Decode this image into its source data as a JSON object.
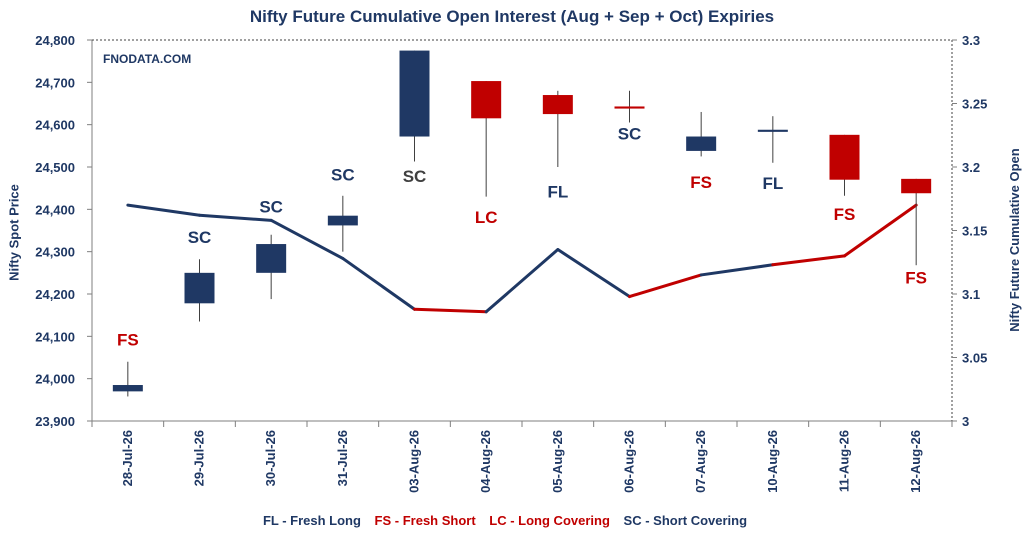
{
  "chart_data": {
    "type": "candlestick+line",
    "title": "Nifty Future Cumulative Open Interest (Aug + Sep + Oct) Expiries",
    "ylabel_left": "Nifty Spot Price",
    "ylabel_right": "Nifty Future Cumulative Open Interest",
    "ylim_left": [
      23900,
      24800
    ],
    "ylim_right": [
      3,
      3.3
    ],
    "yticks_left": [
      "23,900",
      "24,000",
      "24,100",
      "24,200",
      "24,300",
      "24,400",
      "24,500",
      "24,600",
      "24,700",
      "24,800"
    ],
    "yticks_right": [
      "3",
      "3.05",
      "3.1",
      "3.15",
      "3.2",
      "3.25",
      "3.3"
    ],
    "categories": [
      "28-Jul-26",
      "29-Jul-26",
      "30-Jul-26",
      "31-Jul-26",
      "03-Aug-26",
      "04-Aug-26",
      "05-Aug-26",
      "06-Aug-26",
      "07-Aug-26",
      "10-Aug-26",
      "11-Aug-26",
      "12-Aug-26"
    ],
    "candles": [
      {
        "open": 23985,
        "high": 24040,
        "low": 23958,
        "close": 23970,
        "color": "#1f3864"
      },
      {
        "open": 24178,
        "high": 24282,
        "low": 24135,
        "close": 24250,
        "color": "#1f3864"
      },
      {
        "open": 24250,
        "high": 24340,
        "low": 24188,
        "close": 24318,
        "color": "#1f3864"
      },
      {
        "open": 24362,
        "high": 24432,
        "low": 24300,
        "close": 24385,
        "color": "#1f3864"
      },
      {
        "open": 24572,
        "high": 24775,
        "low": 24513,
        "close": 24775,
        "color": "#1f3864"
      },
      {
        "open": 24703,
        "high": 24703,
        "low": 24430,
        "close": 24615,
        "color": "#c00000"
      },
      {
        "open": 24670,
        "high": 24680,
        "low": 24500,
        "close": 24625,
        "color": "#c00000"
      },
      {
        "open": 24643,
        "high": 24680,
        "low": 24605,
        "close": 24638,
        "color": "#c00000"
      },
      {
        "open": 24538,
        "high": 24630,
        "low": 24525,
        "close": 24572,
        "color": "#1f3864"
      },
      {
        "open": 24583,
        "high": 24620,
        "low": 24510,
        "close": 24588,
        "color": "#1f3864"
      },
      {
        "open": 24576,
        "high": 24576,
        "low": 24432,
        "close": 24470,
        "color": "#c00000"
      },
      {
        "open": 24472,
        "high": 24472,
        "low": 24268,
        "close": 24438,
        "color": "#c00000"
      }
    ],
    "open_interest": [
      3.17,
      3.162,
      3.158,
      3.128,
      3.088,
      3.086,
      3.135,
      3.098,
      3.115,
      3.123,
      3.13,
      3.17
    ],
    "oi_segment_colors": [
      "#1f3864",
      "#1f3864",
      "#1f3864",
      "#1f3864",
      "#c00000",
      "#1f3864",
      "#1f3864",
      "#c00000",
      "#1f3864",
      "#c00000",
      "#c00000"
    ],
    "signals": [
      {
        "text": "FS",
        "y": 24078,
        "color": "#c00000"
      },
      {
        "text": "SC",
        "y": 24320,
        "color": "#1f3864"
      },
      {
        "text": "SC",
        "y": 24392,
        "color": "#1f3864"
      },
      {
        "text": "SC",
        "y": 24468,
        "color": "#1f3864"
      },
      {
        "text": "SC",
        "y": 24465,
        "color": "#404040"
      },
      {
        "text": "LC",
        "y": 24368,
        "color": "#c00000"
      },
      {
        "text": "FL",
        "y": 24428,
        "color": "#1f3864"
      },
      {
        "text": "SC",
        "y": 24565,
        "color": "#1f3864"
      },
      {
        "text": "FS",
        "y": 24450,
        "color": "#c00000"
      },
      {
        "text": "FL",
        "y": 24448,
        "color": "#1f3864"
      },
      {
        "text": "FS",
        "y": 24375,
        "color": "#c00000"
      },
      {
        "text": "FS",
        "y": 24225,
        "color": "#c00000"
      }
    ],
    "watermark": "FNODATA.COM"
  },
  "legend": {
    "fl": "FL - Fresh Long",
    "fs": "FS - Fresh Short",
    "lc": "LC - Long Covering",
    "sc": "SC - Short Covering"
  }
}
